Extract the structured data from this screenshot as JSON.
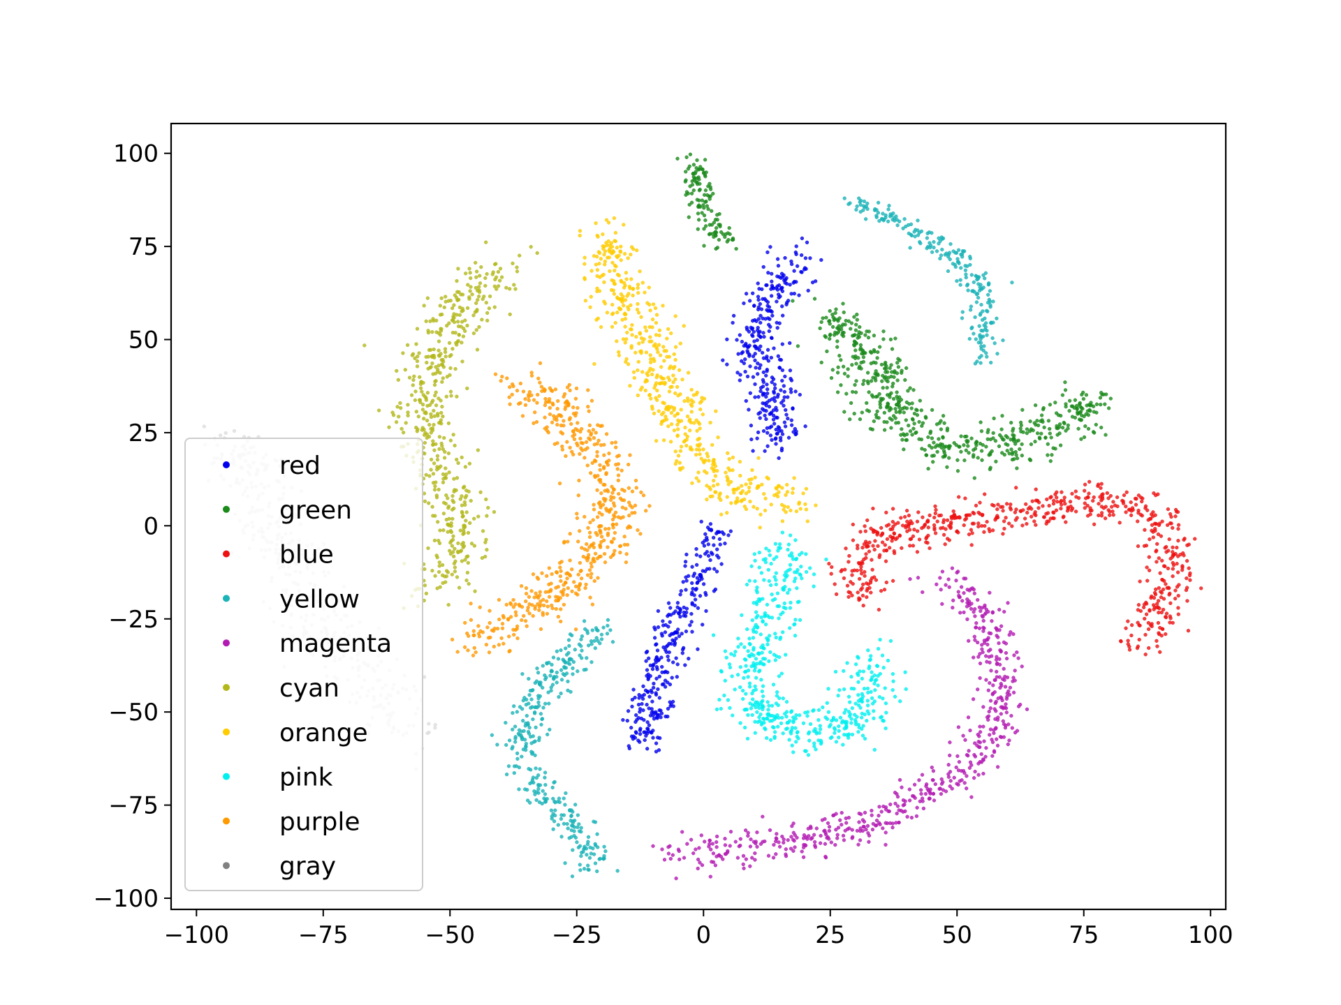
{
  "chart_data": {
    "type": "scatter",
    "title": "",
    "xlabel": "",
    "ylabel": "",
    "xlim": [
      -105,
      103
    ],
    "ylim": [
      -103,
      108
    ],
    "xticks": [
      -100,
      -75,
      -50,
      -25,
      0,
      25,
      50,
      75,
      100
    ],
    "yticks": [
      -100,
      -75,
      -50,
      -25,
      0,
      25,
      50,
      75,
      100
    ],
    "xtick_labels": [
      "−100",
      "−75",
      "−50",
      "−25",
      "0",
      "25",
      "50",
      "75",
      "100"
    ],
    "ytick_labels": [
      "−100",
      "−75",
      "−50",
      "−25",
      "0",
      "25",
      "50",
      "75",
      "100"
    ],
    "grid": false,
    "legend_position": "lower-left",
    "series": [
      {
        "name": "red",
        "color": "#0000ee",
        "arms": [
          {
            "path": [
              [
                18,
                73
              ],
              [
                14,
                62
              ],
              [
                10,
                52
              ],
              [
                12,
                42
              ],
              [
                14,
                32
              ],
              [
                15,
                22
              ]
            ],
            "width": 5,
            "n": 320
          },
          {
            "path": [
              [
                3,
                -1
              ],
              [
                0,
                -10
              ],
              [
                -4,
                -22
              ],
              [
                -8,
                -35
              ],
              [
                -10,
                -47
              ],
              [
                -13,
                -58
              ]
            ],
            "width": 4,
            "n": 300
          }
        ]
      },
      {
        "name": "green",
        "color": "#1a8a1a",
        "arms": [
          {
            "path": [
              [
                -2,
                99
              ],
              [
                -1,
                90
              ],
              [
                1,
                82
              ],
              [
                4,
                76
              ]
            ],
            "width": 3,
            "n": 120
          },
          {
            "path": [
              [
                25,
                56
              ],
              [
                30,
                50
              ],
              [
                33,
                40
              ],
              [
                38,
                30
              ],
              [
                45,
                22
              ],
              [
                55,
                20
              ],
              [
                65,
                25
              ],
              [
                78,
                33
              ]
            ],
            "width": 6,
            "n": 560
          }
        ]
      },
      {
        "name": "blue",
        "color": "#ee1111",
        "arms": [
          {
            "path": [
              [
                32,
                -20
              ],
              [
                30,
                -10
              ],
              [
                35,
                -2
              ],
              [
                50,
                1
              ],
              [
                65,
                4
              ],
              [
                80,
                8
              ],
              [
                89,
                3
              ],
              [
                93,
                -10
              ],
              [
                90,
                -22
              ],
              [
                85,
                -31
              ]
            ],
            "width": 5,
            "n": 620
          }
        ]
      },
      {
        "name": "yellow",
        "color": "#1ab3b8",
        "arms": [
          {
            "path": [
              [
                30,
                87
              ],
              [
                40,
                80
              ],
              [
                50,
                72
              ],
              [
                56,
                62
              ],
              [
                55,
                44
              ]
            ],
            "width": 3,
            "n": 220
          },
          {
            "path": [
              [
                -20,
                -27
              ],
              [
                -27,
                -37
              ],
              [
                -34,
                -48
              ],
              [
                -37,
                -62
              ],
              [
                -31,
                -72
              ],
              [
                -25,
                -82
              ],
              [
                -21,
                -92
              ]
            ],
            "width": 4,
            "n": 340
          }
        ]
      },
      {
        "name": "magenta",
        "color": "#b31ab3",
        "arms": [
          {
            "path": [
              [
                47,
                -15
              ],
              [
                55,
                -23
              ],
              [
                58,
                -38
              ],
              [
                58,
                -50
              ],
              [
                55,
                -60
              ],
              [
                48,
                -70
              ],
              [
                35,
                -79
              ],
              [
                20,
                -84
              ],
              [
                5,
                -87
              ],
              [
                -5,
                -88
              ]
            ],
            "width": 5,
            "n": 560
          }
        ]
      },
      {
        "name": "cyan",
        "color": "#b3b81a",
        "arms": [
          {
            "path": [
              [
                -39,
                71
              ],
              [
                -48,
                57
              ],
              [
                -55,
                40
              ],
              [
                -55,
                23
              ],
              [
                -50,
                10
              ],
              [
                -48,
                0
              ],
              [
                -50,
                -12
              ],
              [
                -55,
                -18
              ]
            ],
            "width": 6,
            "n": 520
          }
        ]
      },
      {
        "name": "orange",
        "color": "#ffcc00",
        "arms": [
          {
            "path": [
              [
                -19,
                79
              ],
              [
                -18,
                66
              ],
              [
                -14,
                56
              ],
              [
                -9,
                42
              ],
              [
                -5,
                28
              ],
              [
                1,
                14
              ],
              [
                10,
                8
              ],
              [
                20,
                7
              ]
            ],
            "width": 6,
            "n": 520
          }
        ]
      },
      {
        "name": "pink",
        "color": "#00f0f0",
        "arms": [
          {
            "path": [
              [
                17,
                -5
              ],
              [
                14,
                -20
              ],
              [
                10,
                -35
              ],
              [
                8,
                -46
              ],
              [
                17,
                -55
              ],
              [
                27,
                -55
              ],
              [
                33,
                -45
              ],
              [
                33,
                -35
              ]
            ],
            "width": 6,
            "n": 520
          }
        ]
      },
      {
        "name": "purple",
        "color": "#ff9900",
        "arms": [
          {
            "path": [
              [
                -36,
                37
              ],
              [
                -28,
                32
              ],
              [
                -22,
                20
              ],
              [
                -17,
                5
              ],
              [
                -22,
                -10
              ],
              [
                -32,
                -20
              ],
              [
                -45,
                -31
              ]
            ],
            "width": 6,
            "n": 520
          }
        ]
      },
      {
        "name": "gray",
        "color": "#dddddd",
        "legend_color": "#808080",
        "arms": [
          {
            "path": [
              [
                -96,
                22
              ],
              [
                -88,
                14
              ],
              [
                -84,
                -4
              ],
              [
                -76,
                -26
              ],
              [
                -67,
                -38
              ],
              [
                -59,
                -57
              ]
            ],
            "width": 7,
            "n": 420
          }
        ]
      }
    ]
  }
}
